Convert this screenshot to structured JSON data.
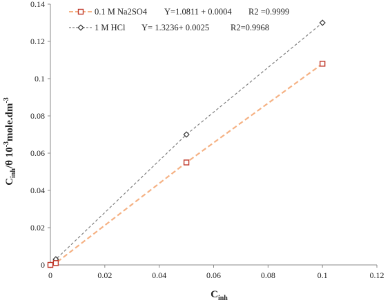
{
  "chart_data": {
    "type": "scatter",
    "xlabel": "C",
    "xlabel_sub": "inh",
    "ylabel": "C",
    "ylabel_sub": "inh",
    "ylabel_rest": "/θ 10",
    "ylabel_sup": "-3",
    "ylabel_tail": "mole.dm",
    "ylabel_sup2": "-3",
    "xlim": [
      0,
      0.12
    ],
    "ylim": [
      0,
      0.14
    ],
    "x_ticks": [
      0,
      0.02,
      0.04,
      0.06,
      0.08,
      0.1,
      0.12
    ],
    "x_tick_labels": [
      "0",
      "0.02",
      "0.04",
      "0.06",
      "0.08",
      "0.1",
      "0.12"
    ],
    "y_ticks": [
      0,
      0.02,
      0.04,
      0.06,
      0.08,
      0.1,
      0.12,
      0.14
    ],
    "y_tick_labels": [
      "0",
      "0.02",
      "0.04",
      "0.06",
      "0.08",
      "0.1",
      "0.12",
      "0.14"
    ],
    "grid": false,
    "legend_position": "top-left",
    "series": [
      {
        "name": "0.1 M Na2SO4",
        "equation": "Y=1.0811 + 0.0004",
        "r2": "R2 =0.9999",
        "marker": "square",
        "color": "#c0392b",
        "line_color": "#f5b183",
        "x": [
          0,
          0.002,
          0.05,
          0.1
        ],
        "y": [
          0,
          0.001,
          0.055,
          0.108
        ]
      },
      {
        "name": "1 M HCl",
        "equation": "Y= 1.3236+ 0.0025",
        "r2": "R2=0.9968",
        "marker": "diamond",
        "color": "#333333",
        "line_color": "#7f7f7f",
        "x": [
          0,
          0.002,
          0.05,
          0.1
        ],
        "y": [
          0,
          0.003,
          0.07,
          0.13
        ]
      }
    ]
  }
}
